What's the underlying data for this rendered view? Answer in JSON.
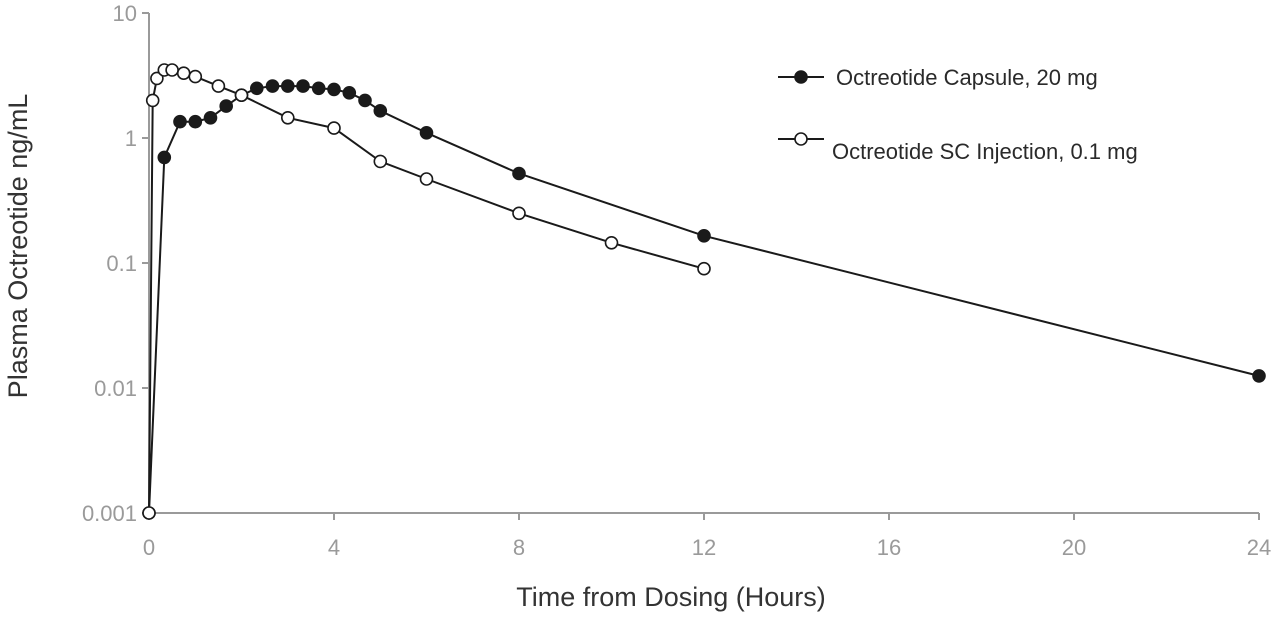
{
  "chart_data": {
    "type": "line",
    "xlabel": "Time from Dosing (Hours)",
    "ylabel": "Plasma Octreotide ng/mL",
    "xlim": [
      0,
      24
    ],
    "ylim": [
      0.001,
      10
    ],
    "yscale": "log",
    "x_ticks": [
      0,
      4,
      8,
      12,
      16,
      20,
      24
    ],
    "y_ticks": [
      0.001,
      0.01,
      0.1,
      1,
      10
    ],
    "y_tick_labels": [
      "0.001",
      "0.01",
      "0.1",
      "1",
      "10"
    ],
    "x_tick_labels": [
      "0",
      "4",
      "8",
      "12",
      "16",
      "20",
      "24"
    ],
    "grid": false,
    "legend_position": "top-right",
    "series": [
      {
        "name": "Octreotide Capsule, 20 mg",
        "marker": "filled-circle",
        "color": "#1a1a1a",
        "x": [
          0,
          0.33,
          0.67,
          1.0,
          1.33,
          1.67,
          2.0,
          2.33,
          2.67,
          3.0,
          3.33,
          3.67,
          4.0,
          4.33,
          4.67,
          5.0,
          6.0,
          8.0,
          12.0,
          24.0
        ],
        "y": [
          0.001,
          0.7,
          1.35,
          1.35,
          1.45,
          1.8,
          2.2,
          2.5,
          2.6,
          2.6,
          2.6,
          2.5,
          2.45,
          2.3,
          2.0,
          1.65,
          1.1,
          0.52,
          0.165,
          0.0125
        ]
      },
      {
        "name": "Octreotide SC Injection, 0.1 mg",
        "marker": "open-circle",
        "color": "#1a1a1a",
        "x": [
          0,
          0.08,
          0.17,
          0.33,
          0.5,
          0.75,
          1.0,
          1.5,
          2.0,
          3.0,
          4.0,
          5.0,
          6.0,
          8.0,
          10.0,
          12.0
        ],
        "y": [
          0.001,
          2.0,
          3.0,
          3.5,
          3.5,
          3.3,
          3.1,
          2.6,
          2.2,
          1.45,
          1.2,
          0.65,
          0.47,
          0.25,
          0.145,
          0.09
        ]
      }
    ]
  }
}
